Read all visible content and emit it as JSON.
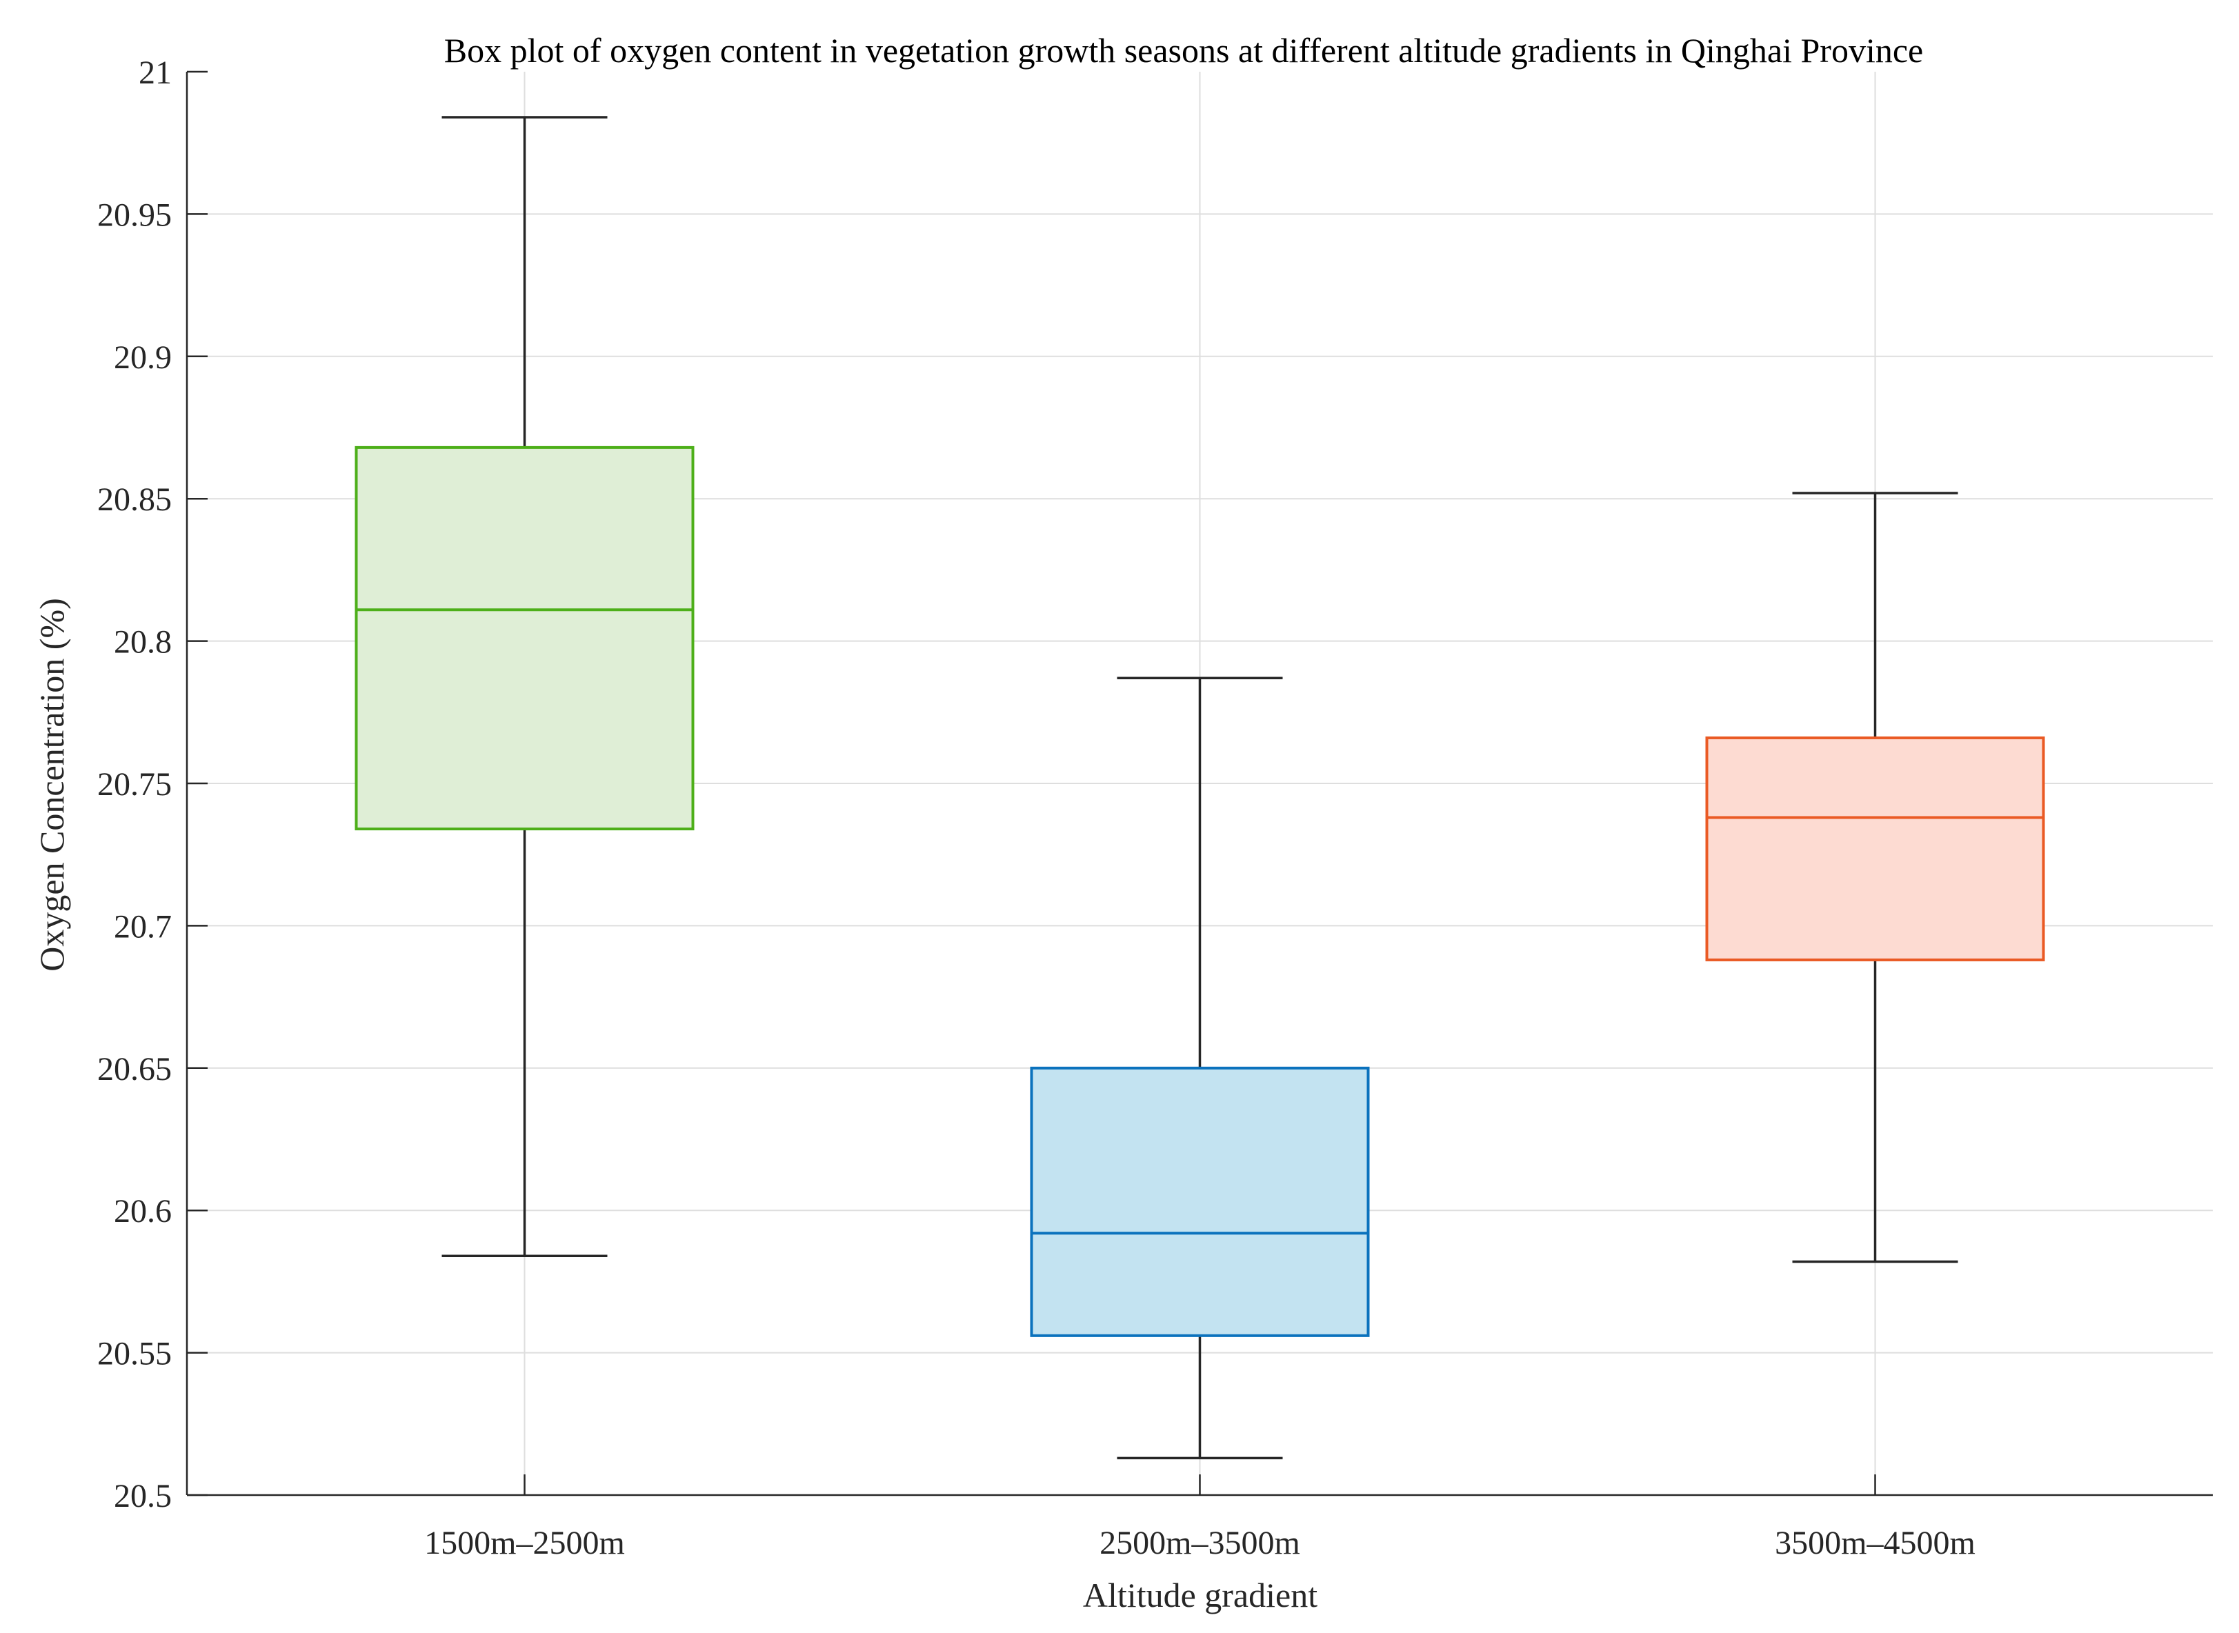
{
  "chart_data": {
    "type": "box",
    "title": "Box plot of oxygen content in vegetation growth seasons at different altitude gradients in Qinghai Province",
    "xlabel": "Altitude gradient",
    "ylabel": "Oxygen Concentration  (%)",
    "ylim": [
      20.5,
      21
    ],
    "yticks": [
      "20.5",
      "20.55",
      "20.6",
      "20.65",
      "20.7",
      "20.75",
      "20.8",
      "20.85",
      "20.9",
      "20.95",
      "21"
    ],
    "grid": true,
    "categories": [
      "1500m–2500m",
      "2500m–3500m",
      "3500m–4500m"
    ],
    "series": [
      {
        "name": "1500m–2500m",
        "min": 20.584,
        "q1": 20.734,
        "median": 20.811,
        "q3": 20.868,
        "max": 20.984,
        "edge_color": "#4daf19",
        "fill_color": "#dfeed6"
      },
      {
        "name": "2500m–3500m",
        "min": 20.513,
        "q1": 20.556,
        "median": 20.592,
        "q3": 20.65,
        "max": 20.787,
        "edge_color": "#0b72bd",
        "fill_color": "#c3e3f1"
      },
      {
        "name": "3500m–4500m",
        "min": 20.582,
        "q1": 20.688,
        "median": 20.738,
        "q3": 20.766,
        "max": 20.852,
        "edge_color": "#ea5a24",
        "fill_color": "#fddbd2"
      }
    ]
  }
}
